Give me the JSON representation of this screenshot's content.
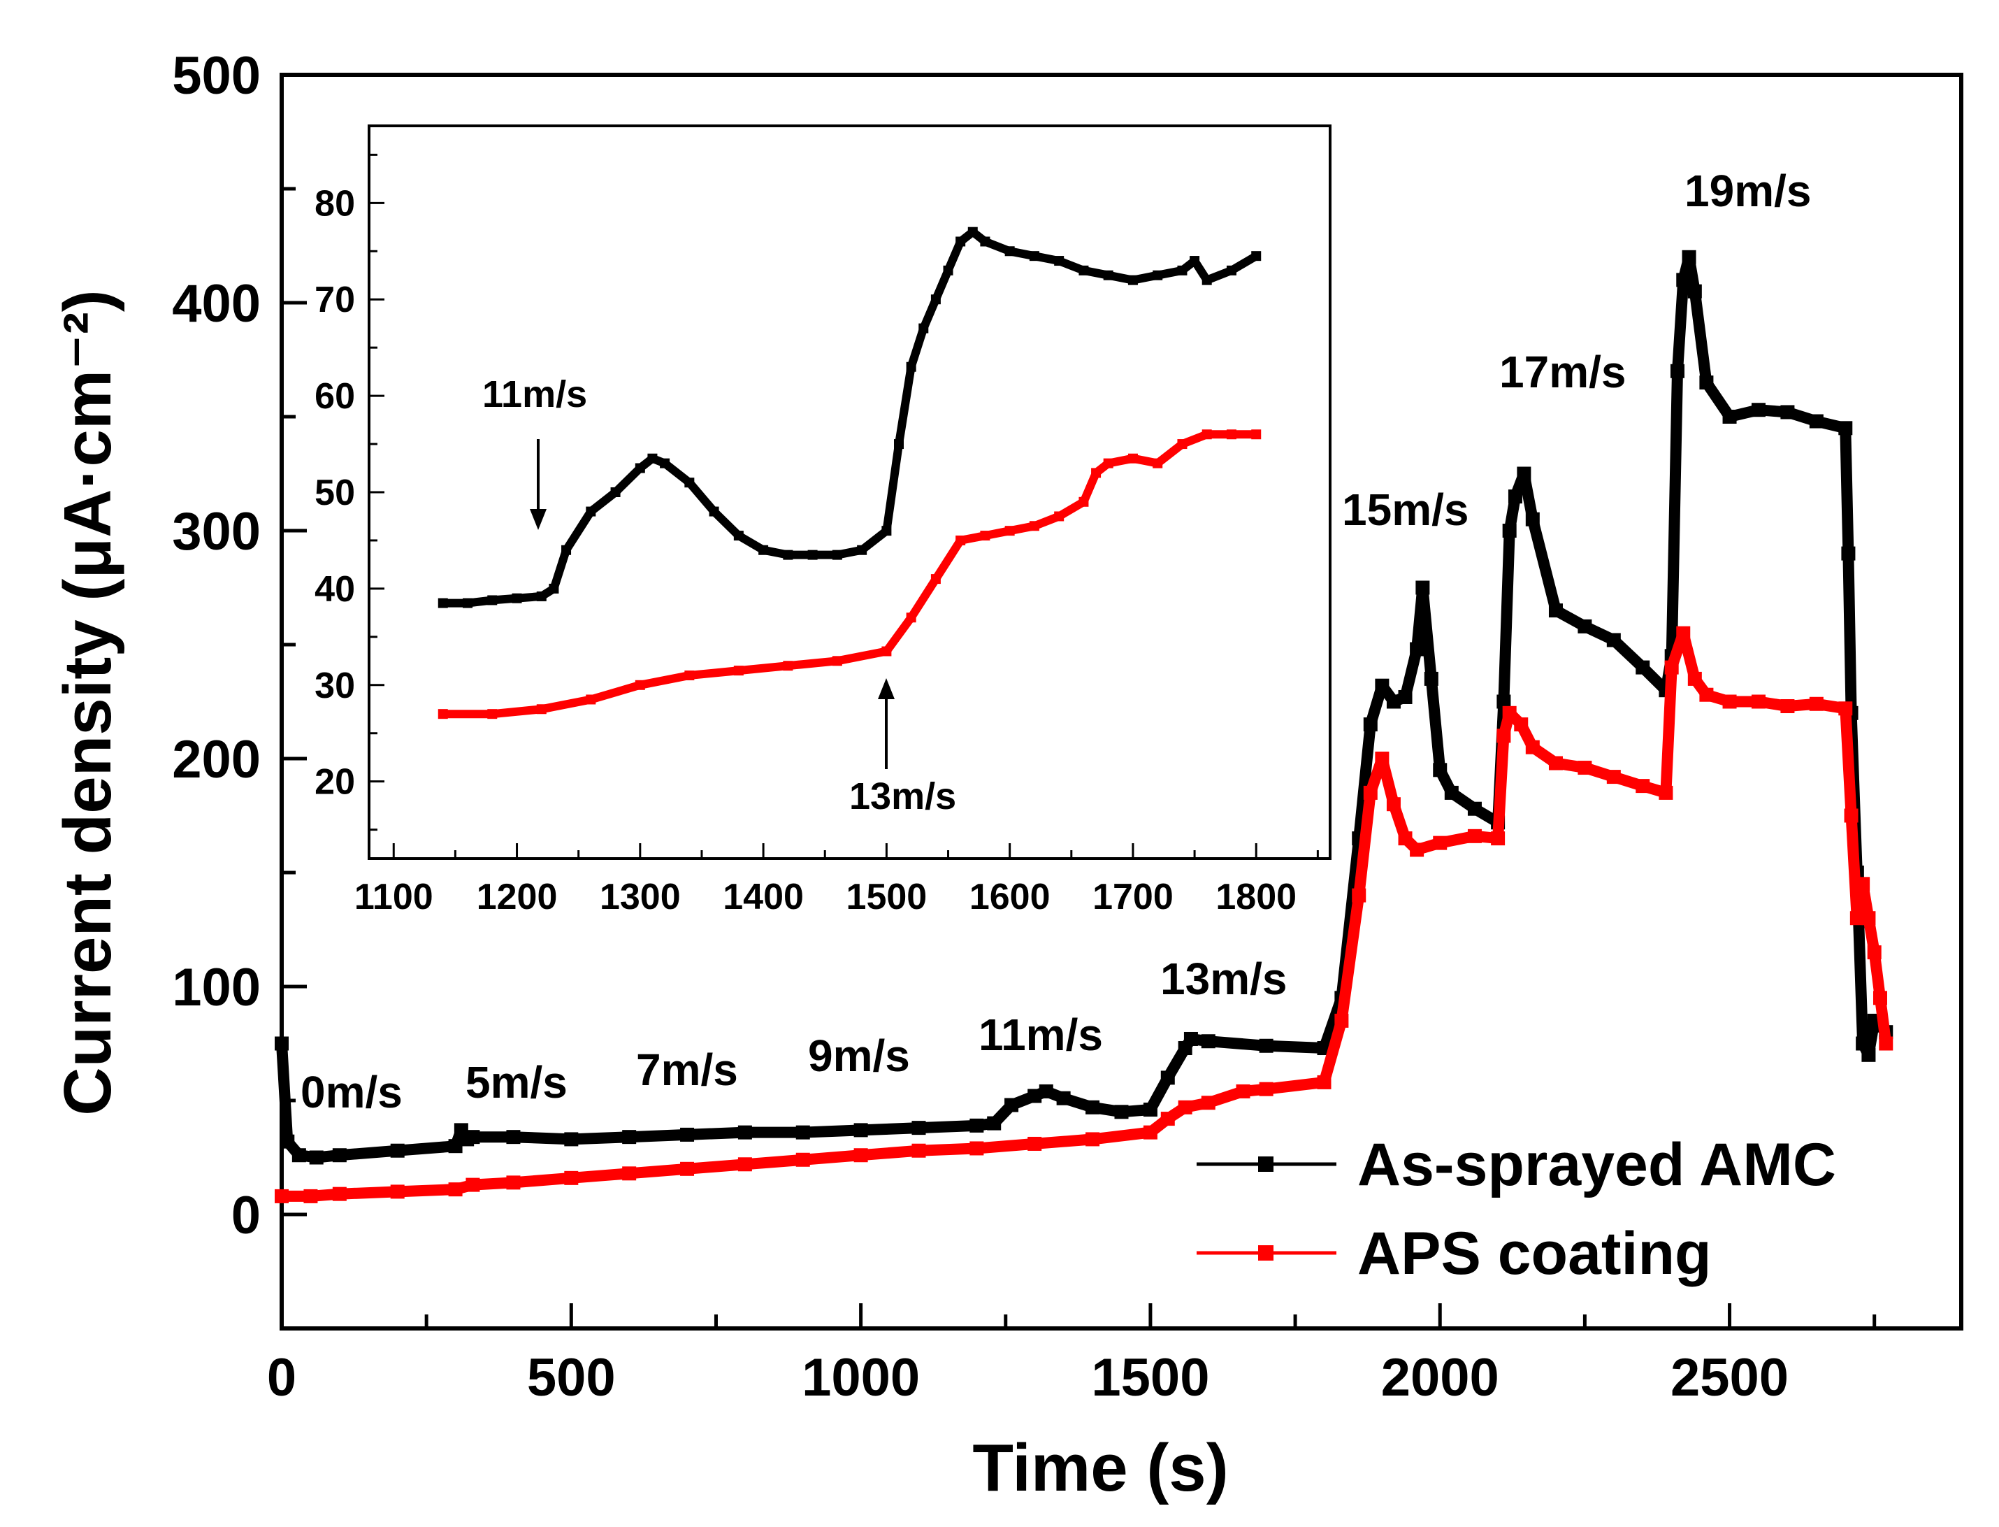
{
  "chart_data": [
    {
      "type": "line",
      "xlabel": "Time (s)",
      "ylabel": "Current density (μA·cm⁻²)",
      "xlim": [
        0,
        2900
      ],
      "ylim": [
        -50,
        500
      ],
      "xticks": [
        0,
        500,
        1000,
        1500,
        2000,
        2500
      ],
      "yticks": [
        0,
        100,
        200,
        300,
        400,
        500
      ],
      "grid": false,
      "legend_position": "bottom-right",
      "series": [
        {
          "name": "As-sprayed AMC",
          "color": "#000000",
          "x": [
            0,
            10,
            30,
            60,
            100,
            200,
            300,
            310,
            320,
            330,
            400,
            500,
            600,
            700,
            800,
            900,
            1000,
            1100,
            1200,
            1230,
            1260,
            1300,
            1320,
            1350,
            1400,
            1450,
            1500,
            1530,
            1560,
            1570,
            1600,
            1700,
            1800,
            1830,
            1860,
            1880,
            1900,
            1920,
            1940,
            1960,
            1970,
            1985,
            2000,
            2020,
            2060,
            2100,
            2110,
            2120,
            2130,
            2145,
            2160,
            2200,
            2250,
            2300,
            2350,
            2390,
            2400,
            2410,
            2420,
            2430,
            2440,
            2460,
            2500,
            2550,
            2600,
            2650,
            2700,
            2705,
            2710,
            2720,
            2730,
            2740,
            2750,
            2770
          ],
          "y": [
            75,
            32,
            26,
            25,
            26,
            28,
            30,
            37,
            33,
            34,
            34,
            33,
            34,
            35,
            36,
            36,
            37,
            38,
            39,
            40,
            48,
            52,
            54,
            51,
            47,
            45,
            46,
            60,
            73,
            77,
            76,
            74,
            73,
            95,
            165,
            215,
            232,
            225,
            227,
            248,
            275,
            235,
            195,
            185,
            178,
            172,
            225,
            300,
            315,
            325,
            305,
            265,
            258,
            252,
            240,
            230,
            245,
            370,
            410,
            420,
            405,
            365,
            350,
            353,
            352,
            348,
            345,
            290,
            220,
            150,
            75,
            70,
            85,
            80
          ]
        },
        {
          "name": "APS coating",
          "color": "#ff0000",
          "x": [
            0,
            50,
            100,
            200,
            300,
            330,
            400,
            500,
            600,
            700,
            800,
            900,
            1000,
            1100,
            1200,
            1300,
            1400,
            1500,
            1530,
            1560,
            1600,
            1660,
            1700,
            1800,
            1830,
            1860,
            1880,
            1900,
            1920,
            1940,
            1960,
            2000,
            2060,
            2100,
            2110,
            2120,
            2140,
            2160,
            2200,
            2250,
            2300,
            2350,
            2390,
            2400,
            2420,
            2440,
            2460,
            2500,
            2550,
            2600,
            2650,
            2700,
            2710,
            2720,
            2730,
            2740,
            2750,
            2760,
            2770
          ],
          "y": [
            8,
            8,
            9,
            10,
            11,
            13,
            14,
            16,
            18,
            20,
            22,
            24,
            26,
            28,
            29,
            31,
            33,
            36,
            42,
            47,
            49,
            54,
            55,
            58,
            85,
            140,
            185,
            200,
            180,
            165,
            160,
            163,
            166,
            165,
            210,
            220,
            215,
            205,
            198,
            196,
            192,
            188,
            185,
            240,
            255,
            235,
            228,
            225,
            225,
            223,
            224,
            222,
            175,
            130,
            145,
            130,
            115,
            95,
            75
          ]
        }
      ],
      "annotations": [
        "0m/s",
        "5m/s",
        "7m/s",
        "9m/s",
        "11m/s",
        "13m/s",
        "15m/s",
        "17m/s",
        "19m/s"
      ]
    },
    {
      "type": "line",
      "role": "inset",
      "xlim": [
        1080,
        1860
      ],
      "ylim": [
        12,
        88
      ],
      "xticks": [
        1100,
        1200,
        1300,
        1400,
        1500,
        1600,
        1700,
        1800
      ],
      "yticks": [
        20,
        30,
        40,
        50,
        60,
        70,
        80
      ],
      "series": [
        {
          "name": "As-sprayed AMC",
          "color": "#000000",
          "x": [
            1140,
            1160,
            1180,
            1200,
            1220,
            1230,
            1240,
            1260,
            1280,
            1300,
            1310,
            1320,
            1340,
            1360,
            1380,
            1400,
            1420,
            1440,
            1460,
            1480,
            1500,
            1510,
            1520,
            1530,
            1540,
            1550,
            1560,
            1570,
            1580,
            1600,
            1620,
            1640,
            1660,
            1680,
            1700,
            1720,
            1740,
            1750,
            1760,
            1780,
            1800
          ],
          "y": [
            38.5,
            38.5,
            38.8,
            39,
            39.2,
            40,
            44,
            48,
            50,
            52.5,
            53.5,
            53,
            51,
            48,
            45.5,
            44,
            43.5,
            43.5,
            43.5,
            44,
            46,
            55,
            63,
            67,
            70,
            73,
            76,
            77,
            76,
            75,
            74.5,
            74,
            73,
            72.5,
            72,
            72.5,
            73,
            74,
            72,
            73,
            74.5
          ]
        },
        {
          "name": "APS coating",
          "color": "#ff0000",
          "x": [
            1140,
            1180,
            1220,
            1260,
            1300,
            1340,
            1380,
            1420,
            1460,
            1500,
            1520,
            1540,
            1560,
            1580,
            1600,
            1620,
            1640,
            1660,
            1670,
            1680,
            1700,
            1720,
            1740,
            1760,
            1780,
            1800
          ],
          "y": [
            27,
            27,
            27.5,
            28.5,
            30,
            31,
            31.5,
            32,
            32.5,
            33.5,
            37,
            41,
            45,
            45.5,
            46,
            46.5,
            47.5,
            49,
            52,
            53,
            53.5,
            53,
            55,
            56,
            56,
            56
          ]
        }
      ],
      "annotations": [
        "11m/s",
        "13m/s"
      ]
    }
  ]
}
